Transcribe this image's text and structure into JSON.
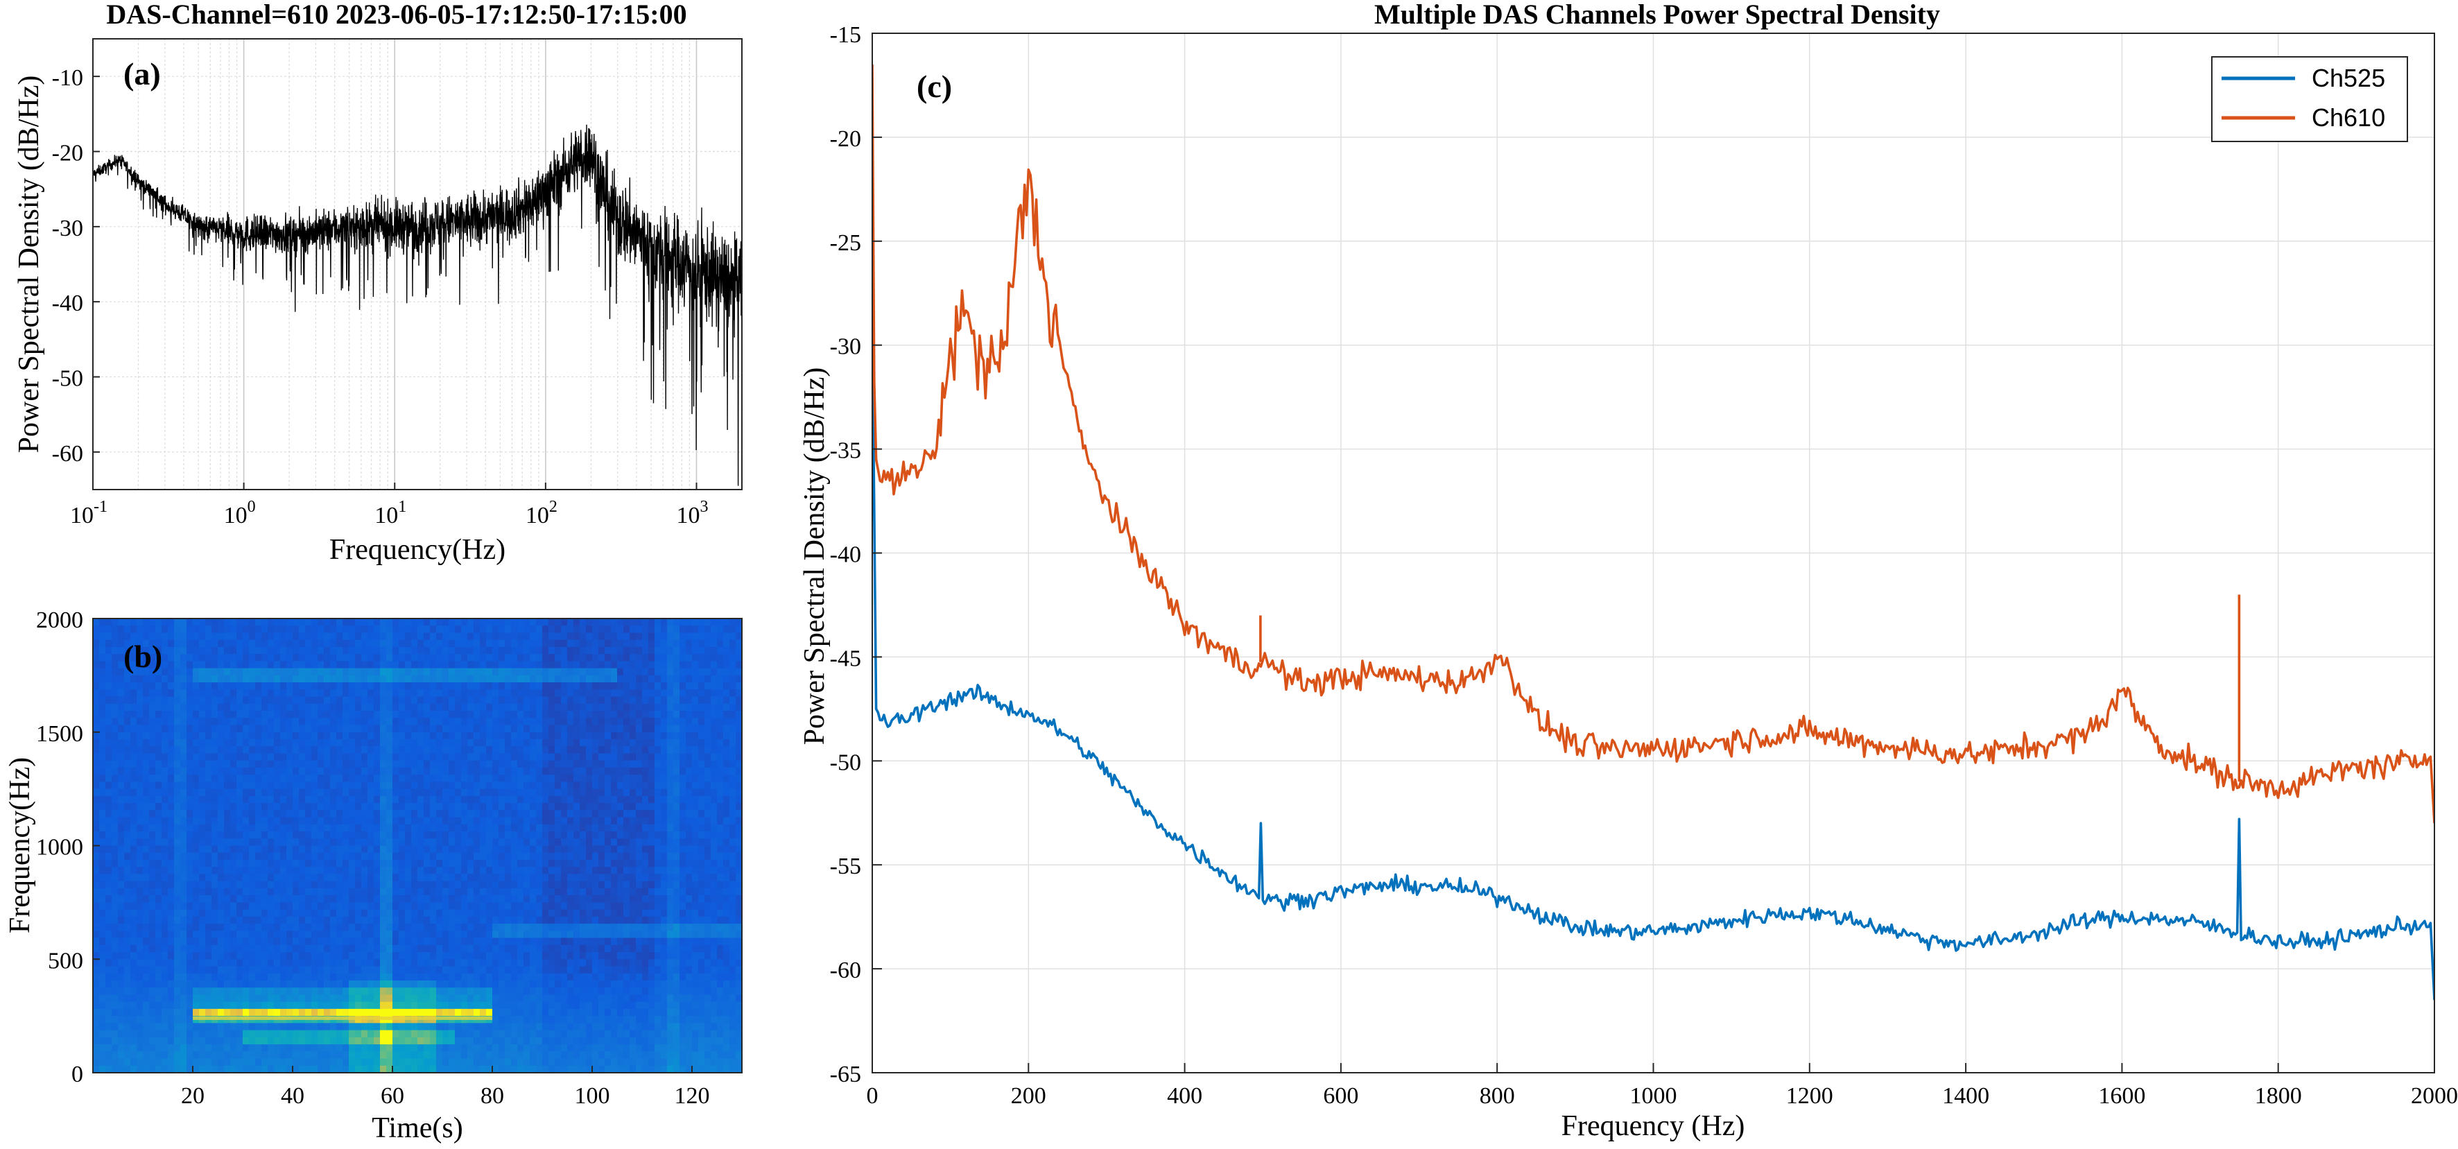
{
  "figure": {
    "panel_a": {
      "title": "DAS-Channel=610  2023-06-05-17:12:50-17:15:00",
      "label": "(a)",
      "xlabel": "Frequency(Hz)",
      "ylabel": "Power Spectral Density (dB/Hz)",
      "y_ticks": [
        "-10",
        "-20",
        "-30",
        "-40",
        "-50",
        "-60"
      ],
      "x_ticks": [
        {
          "base": "10",
          "exp": "-1"
        },
        {
          "base": "10",
          "exp": "0"
        },
        {
          "base": "10",
          "exp": "1"
        },
        {
          "base": "10",
          "exp": "2"
        },
        {
          "base": "10",
          "exp": "3"
        }
      ]
    },
    "panel_b": {
      "label": "(b)",
      "xlabel": "Time(s)",
      "ylabel": "Frequency(Hz)",
      "x_ticks": [
        "20",
        "40",
        "60",
        "80",
        "100",
        "120"
      ],
      "y_ticks": [
        "0",
        "500",
        "1000",
        "1500",
        "2000"
      ]
    },
    "panel_c": {
      "title": "Multiple DAS Channels Power Spectral Density",
      "label": "(c)",
      "xlabel": "Frequency (Hz)",
      "ylabel": "Power Spectral Density (dB/Hz)",
      "x_ticks": [
        "0",
        "200",
        "400",
        "600",
        "800",
        "1000",
        "1200",
        "1400",
        "1600",
        "1800",
        "2000"
      ],
      "y_ticks": [
        "-15",
        "-20",
        "-25",
        "-30",
        "-35",
        "-40",
        "-45",
        "-50",
        "-55",
        "-60",
        "-65"
      ],
      "legend": [
        "Ch525",
        "Ch610"
      ]
    }
  },
  "chart_data": [
    {
      "id": "a",
      "type": "line",
      "title": "DAS-Channel=610  2023-06-05-17:12:50-17:15:00",
      "xlabel": "Frequency(Hz)",
      "ylabel": "Power Spectral Density (dB/Hz)",
      "xscale": "log",
      "xlim": [
        0.1,
        2000
      ],
      "ylim": [
        -65,
        -5
      ],
      "grid": true,
      "color": "#000000",
      "trend": {
        "x": [
          0.1,
          0.15,
          0.2,
          0.3,
          0.5,
          1,
          2,
          5,
          10,
          20,
          50,
          80,
          100,
          130,
          160,
          200,
          230,
          300,
          500,
          1000,
          2000
        ],
        "y": [
          -23,
          -21,
          -24,
          -27,
          -30,
          -31,
          -31,
          -30,
          -30,
          -29.5,
          -28.5,
          -27,
          -25,
          -23,
          -21,
          -20,
          -24,
          -29,
          -33,
          -36,
          -38
        ]
      },
      "spread_db": {
        "x": [
          0.1,
          1,
          10,
          100,
          300,
          1000,
          2000
        ],
        "y": [
          1.5,
          5,
          7,
          8,
          11,
          13,
          13
        ]
      }
    },
    {
      "id": "b",
      "type": "heatmap",
      "xlabel": "Time(s)",
      "ylabel": "Frequency(Hz)",
      "xlim": [
        0,
        130
      ],
      "ylim": [
        0,
        2000
      ],
      "colormap": "parula",
      "bright_time_s": [
        18,
        59,
        116
      ],
      "bright_bands_hz": [
        {
          "f": 240,
          "t": [
            20,
            80
          ],
          "intensity": 0.75
        },
        {
          "f": 280,
          "t": [
            20,
            80
          ],
          "intensity": 0.45
        },
        {
          "f": 350,
          "t": [
            20,
            80
          ],
          "intensity": 0.35
        },
        {
          "f": 160,
          "t": [
            30,
            72
          ],
          "intensity": 0.5
        },
        {
          "f": 1750,
          "t": [
            20,
            105
          ],
          "intensity": 0.4
        },
        {
          "f": 620,
          "t": [
            80,
            130
          ],
          "intensity": 0.3
        }
      ]
    },
    {
      "id": "c",
      "type": "line",
      "title": "Multiple DAS Channels Power Spectral Density",
      "xlabel": "Frequency (Hz)",
      "ylabel": "Power Spectral Density (dB/Hz)",
      "xlim": [
        0,
        2000
      ],
      "ylim": [
        -65,
        -15
      ],
      "grid": true,
      "legend_position": "top-right",
      "series": [
        {
          "name": "Ch525",
          "color": "#0072BD",
          "x": [
            0,
            2,
            5,
            15,
            40,
            80,
            120,
            140,
            170,
            200,
            250,
            300,
            350,
            400,
            450,
            480,
            520,
            560,
            600,
            650,
            700,
            750,
            800,
            850,
            900,
            950,
            1000,
            1050,
            1100,
            1150,
            1200,
            1250,
            1300,
            1350,
            1400,
            1450,
            1500,
            1550,
            1600,
            1650,
            1700,
            1750,
            1800,
            1850,
            1900,
            1950,
            1995,
            2000
          ],
          "y": [
            -29,
            -36,
            -47.5,
            -48.2,
            -48,
            -47.3,
            -46.8,
            -46.8,
            -47.4,
            -47.7,
            -48.8,
            -50.5,
            -52.5,
            -54,
            -55.4,
            -56.2,
            -56.8,
            -56.6,
            -56.3,
            -56,
            -56,
            -56.1,
            -56.5,
            -57.3,
            -58,
            -58.2,
            -58.2,
            -58,
            -57.7,
            -57.4,
            -57.3,
            -57.6,
            -58.1,
            -58.6,
            -58.8,
            -58.6,
            -58.2,
            -57.7,
            -57.5,
            -57.6,
            -57.8,
            -58.3,
            -58.7,
            -58.7,
            -58.4,
            -58,
            -57.8,
            -61.5
          ],
          "spikes": [
            {
              "x": 497,
              "y": -53
            },
            {
              "x": 1750,
              "y": -52.8
            }
          ]
        },
        {
          "name": "Ch610",
          "color": "#D95319",
          "x": [
            0,
            2,
            5,
            10,
            30,
            60,
            80,
            100,
            110,
            130,
            150,
            170,
            190,
            200,
            210,
            230,
            250,
            270,
            300,
            330,
            360,
            400,
            440,
            480,
            500,
            550,
            600,
            650,
            700,
            750,
            780,
            800,
            830,
            850,
            900,
            950,
            1000,
            1050,
            1100,
            1150,
            1200,
            1250,
            1300,
            1350,
            1400,
            1450,
            1500,
            1550,
            1580,
            1600,
            1620,
            1650,
            1700,
            1750,
            1800,
            1850,
            1900,
            1950,
            1995,
            2000
          ],
          "y": [
            -16.5,
            -31,
            -35.5,
            -36.5,
            -36.5,
            -36,
            -35,
            -31,
            -28,
            -30,
            -31.5,
            -30,
            -24,
            -22,
            -24.5,
            -28.5,
            -31.5,
            -35,
            -37.5,
            -39.5,
            -41,
            -43.5,
            -44.5,
            -45.5,
            -45.2,
            -46.3,
            -46,
            -45.8,
            -46,
            -46.2,
            -45.8,
            -44.8,
            -46.5,
            -48,
            -49.2,
            -49.5,
            -49.4,
            -49.3,
            -49,
            -48.8,
            -48.6,
            -49,
            -49.3,
            -49.5,
            -49.7,
            -49.5,
            -49.2,
            -48.8,
            -47.8,
            -46.5,
            -47.8,
            -49.3,
            -50.2,
            -51,
            -51.3,
            -50.8,
            -50.3,
            -50.2,
            -49.8,
            -53
          ]
        }
      ]
    }
  ]
}
